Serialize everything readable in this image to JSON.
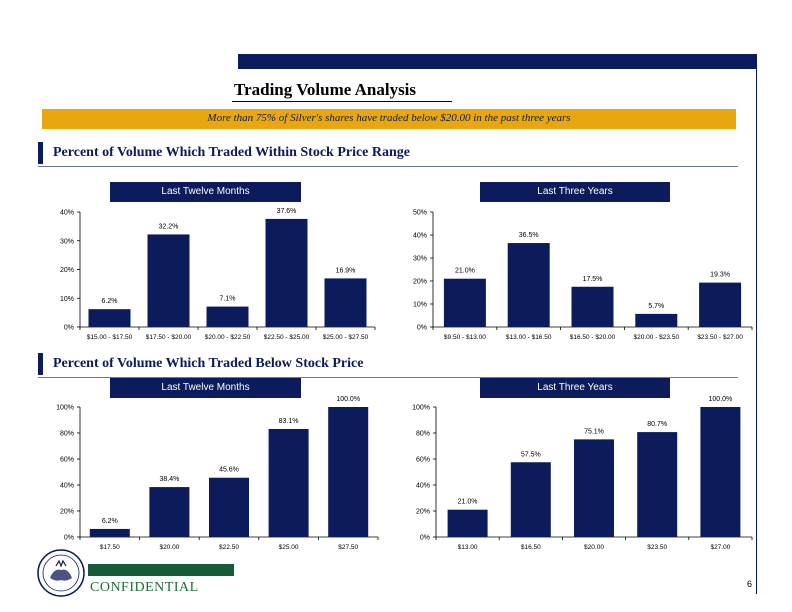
{
  "page": {
    "title": "Trading Volume Analysis",
    "banner": "More than 75% of Silver's shares have traded below $20.00 in the past three years",
    "section1_title": "Percent of Volume Which Traded Within Stock Price Range",
    "section2_title": "Percent of Volume Which Traded Below Stock Price",
    "confidential": "CONFIDENTIAL",
    "page_number": "6"
  },
  "colors": {
    "navy": "#0c1b5c",
    "gold": "#e8a70f",
    "green": "#165a3a"
  },
  "chart_data": [
    {
      "type": "bar",
      "title": "Last Twelve Months",
      "categories": [
        "$15.00 - $17.50",
        "$17.50 - $20.00",
        "$20.00 - $22.50",
        "$22.50 - $25.00",
        "$25.00 - $27.50"
      ],
      "values": [
        6.2,
        32.2,
        7.1,
        37.6,
        16.9
      ],
      "labels": [
        "6.2%",
        "32.2%",
        "7.1%",
        "37.6%",
        "16.9%"
      ],
      "ylim": [
        0,
        40
      ],
      "yticks": [
        "0%",
        "10%",
        "20%",
        "30%",
        "40%"
      ],
      "grid": false
    },
    {
      "type": "bar",
      "title": "Last Three Years",
      "categories": [
        "$9.50 - $13.00",
        "$13.00 - $16.50",
        "$16.50 - $20.00",
        "$20.00 - $23.50",
        "$23.50 - $27.00"
      ],
      "values": [
        21.0,
        36.5,
        17.5,
        5.7,
        19.3
      ],
      "labels": [
        "21.0%",
        "36.5%",
        "17.5%",
        "5.7%",
        "19.3%"
      ],
      "ylim": [
        0,
        50
      ],
      "yticks": [
        "0%",
        "10%",
        "20%",
        "30%",
        "40%",
        "50%"
      ],
      "grid": false
    },
    {
      "type": "bar",
      "title": "Last Twelve Months",
      "categories": [
        "$17.50",
        "$20.00",
        "$22.50",
        "$25.00",
        "$27.50"
      ],
      "values": [
        6.2,
        38.4,
        45.6,
        83.1,
        100.0
      ],
      "labels": [
        "6.2%",
        "38.4%",
        "45.6%",
        "83.1%",
        "100.0%"
      ],
      "ylim": [
        0,
        100
      ],
      "yticks": [
        "0%",
        "20%",
        "40%",
        "60%",
        "80%",
        "100%"
      ],
      "grid": false
    },
    {
      "type": "bar",
      "title": "Last Three Years",
      "categories": [
        "$13.00",
        "$16.50",
        "$20.00",
        "$23.50",
        "$27.00"
      ],
      "values": [
        21.0,
        57.5,
        75.1,
        80.7,
        100.0
      ],
      "labels": [
        "21.0%",
        "57.5%",
        "75.1%",
        "80.7%",
        "100.0%"
      ],
      "ylim": [
        0,
        100
      ],
      "yticks": [
        "0%",
        "20%",
        "40%",
        "60%",
        "80%",
        "100%"
      ],
      "grid": false
    }
  ]
}
